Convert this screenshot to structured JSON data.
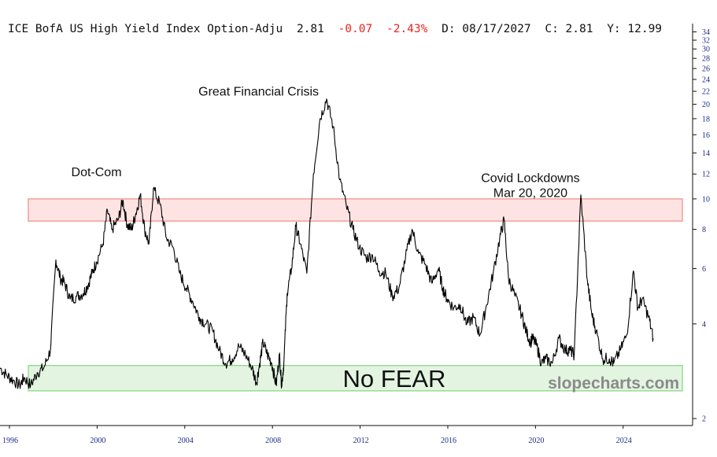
{
  "header": {
    "title": "ICE BofA US High Yield Index Option-Adju",
    "last": "2.81",
    "change": "-0.07",
    "change_pct": "-2.43%",
    "date": "D: 08/17/2027",
    "close": "C:  2.81",
    "ytd": "Y: 12.99"
  },
  "brand": "slopecharts.com",
  "colors": {
    "line": "#000000",
    "fear_band_fill": "#fde4e2",
    "fear_band_stroke": "#f08a82",
    "calm_band_fill": "#e3f5e1",
    "calm_band_stroke": "#84d57c",
    "tick_text": "#1f2a86",
    "negative": "#e8261c"
  },
  "chart_data": {
    "type": "line",
    "y_scale": "log",
    "ylim": [
      1.9,
      34.5
    ],
    "xlim": [
      1996.0,
      2027.6
    ],
    "y_ticks": [
      2,
      4,
      6,
      8,
      10,
      12,
      14,
      16,
      18,
      20,
      22,
      24,
      26,
      28,
      30,
      32,
      34
    ],
    "x_ticks": [
      1996,
      2000,
      2004,
      2008,
      2012,
      2016,
      2020,
      2024
    ],
    "bands": [
      {
        "y_from": 8.5,
        "y_to": 10.0,
        "kind": "fear"
      },
      {
        "y_from": 2.45,
        "y_to": 2.95,
        "kind": "calm",
        "label": "No FEAR"
      }
    ],
    "annotations": [
      {
        "lines": [
          "Dot-Com"
        ],
        "x": 2000.4,
        "y": 11.8
      },
      {
        "lines": [
          "Great Financial Crisis"
        ],
        "x": 2007.8,
        "y": 21.3
      },
      {
        "lines": [
          "Covid Lockdowns",
          "Mar 20, 2020"
        ],
        "x": 2020.2,
        "y": 11.3
      }
    ],
    "series": [
      {
        "x": [
          1996.0,
          1996.3,
          1996.6,
          1996.9,
          1997.1,
          1997.4,
          1997.7,
          1998.0,
          1998.3,
          1998.55,
          1998.75,
          1998.95,
          1999.2,
          1999.5,
          1999.8,
          2000.0,
          2000.2,
          2000.4,
          2000.7,
          2000.9,
          2001.1,
          2001.4,
          2001.6,
          2001.8,
          2002.0,
          2002.2,
          2002.4,
          2002.6,
          2002.8,
          2003.0,
          2003.3,
          2003.6,
          2003.9,
          2004.2,
          2004.5,
          2004.8,
          2005.1,
          2005.4,
          2005.7,
          2006.0,
          2006.3,
          2006.6,
          2006.9,
          2007.2,
          2007.5,
          2007.7,
          2007.85,
          2008.0,
          2008.2,
          2008.4,
          2008.6,
          2008.75,
          2008.85,
          2008.95,
          2009.1,
          2009.3,
          2009.5,
          2009.7,
          2010.0,
          2010.3,
          2010.6,
          2010.9,
          2011.2,
          2011.5,
          2011.8,
          2012.1,
          2012.4,
          2012.7,
          2013.0,
          2013.3,
          2013.6,
          2013.9,
          2014.2,
          2014.5,
          2014.8,
          2015.1,
          2015.4,
          2015.7,
          2016.0,
          2016.2,
          2016.4,
          2016.7,
          2017.0,
          2017.3,
          2017.6,
          2017.9,
          2018.2,
          2018.5,
          2018.8,
          2019.0,
          2019.2,
          2019.5,
          2019.8,
          2020.0,
          2020.2,
          2020.3,
          2020.5,
          2020.7,
          2020.9,
          2021.2,
          2021.5,
          2021.8,
          2022.0,
          2022.2,
          2022.5,
          2022.8,
          2023.0,
          2023.2,
          2023.5,
          2023.8,
          2024.0,
          2024.3,
          2024.6,
          2024.9,
          2025.1,
          2025.3,
          2025.6,
          2025.8
        ],
        "values": [
          2.9,
          2.75,
          2.65,
          2.55,
          2.7,
          2.55,
          2.8,
          2.9,
          3.3,
          6.4,
          5.6,
          5.4,
          4.8,
          4.9,
          5.0,
          5.3,
          5.8,
          6.3,
          7.2,
          9.2,
          8.0,
          8.6,
          9.9,
          8.3,
          8.0,
          9.0,
          10.3,
          8.0,
          7.2,
          10.8,
          9.6,
          7.5,
          7.0,
          5.8,
          5.2,
          4.7,
          4.2,
          4.0,
          3.8,
          3.3,
          3.0,
          3.1,
          3.4,
          3.2,
          2.9,
          2.6,
          3.0,
          3.5,
          3.2,
          3.0,
          2.55,
          3.2,
          2.55,
          3.0,
          5.0,
          6.0,
          8.2,
          7.2,
          5.8,
          12.0,
          18.0,
          20.8,
          17.0,
          11.5,
          9.5,
          8.0,
          7.0,
          6.5,
          6.6,
          5.9,
          5.8,
          4.9,
          5.2,
          6.5,
          8.0,
          6.7,
          6.2,
          5.4,
          6.0,
          5.2,
          4.8,
          4.5,
          4.6,
          4.0,
          4.2,
          3.7,
          4.6,
          5.8,
          7.5,
          8.6,
          5.6,
          4.9,
          4.3,
          3.8,
          3.5,
          3.6,
          3.4,
          3.0,
          3.1,
          3.0,
          3.6,
          3.3,
          3.3,
          3.2,
          10.3,
          5.5,
          4.3,
          3.8,
          3.1,
          3.1,
          3.0,
          3.3,
          3.7,
          5.9,
          4.5,
          4.8,
          4.2,
          3.6
        ]
      }
    ]
  }
}
